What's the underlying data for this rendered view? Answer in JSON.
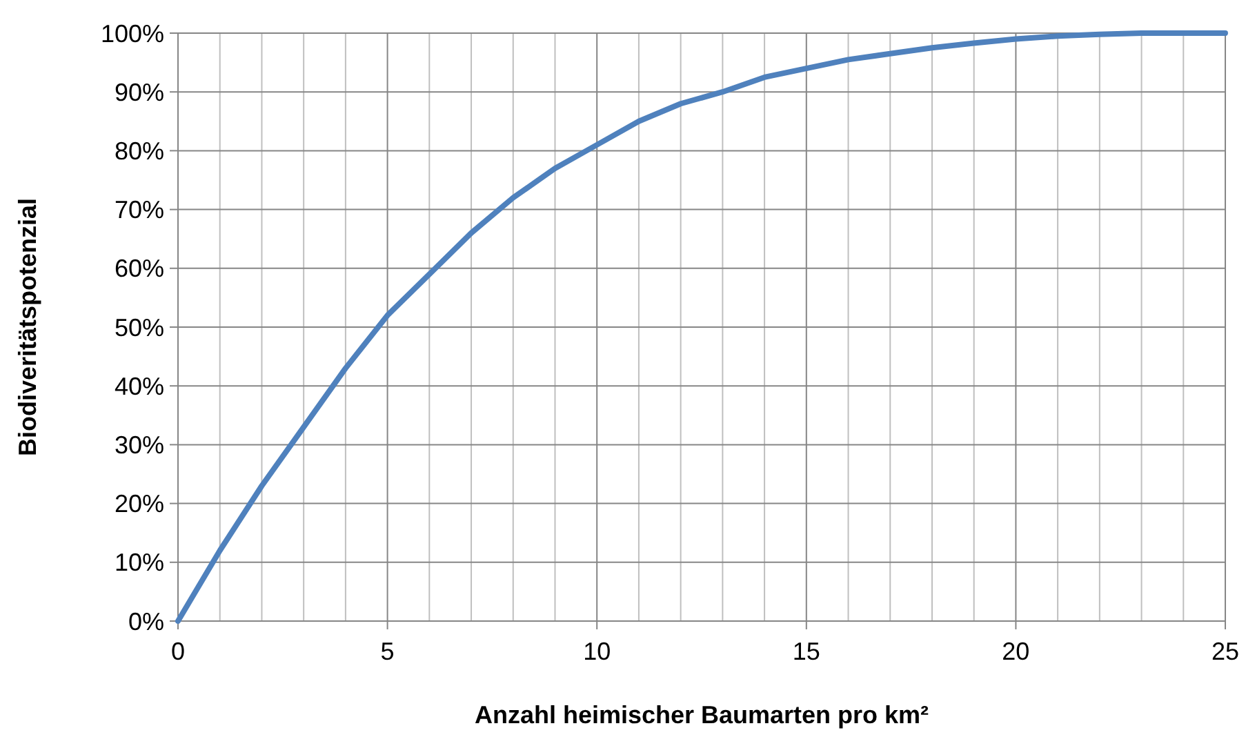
{
  "chart_data": {
    "type": "line",
    "xlabel": "Anzahl heimischer Baumarten pro km²",
    "ylabel": "Biodiveritätspotenzial",
    "x": [
      0,
      1,
      2,
      3,
      4,
      5,
      6,
      7,
      8,
      9,
      10,
      11,
      12,
      13,
      14,
      15,
      16,
      17,
      18,
      19,
      20,
      21,
      22,
      23,
      24,
      25
    ],
    "series": [
      {
        "color": "#4f81bd",
        "values": [
          0,
          12,
          23,
          33,
          43,
          52,
          59,
          66,
          72,
          77,
          81,
          85,
          88,
          90,
          92.5,
          94,
          95.5,
          96.5,
          97.5,
          98.3,
          99,
          99.5,
          99.8,
          100,
          100,
          100
        ]
      }
    ],
    "xlim": [
      0,
      25
    ],
    "xticks": [
      0,
      {
        "value": 1,
        "label": null
      },
      {
        "value": 2,
        "label": null
      },
      {
        "value": 3,
        "label": null
      },
      {
        "value": 4,
        "label": null
      },
      5,
      {
        "value": 6,
        "label": null
      },
      {
        "value": 7,
        "label": null
      },
      {
        "value": 8,
        "label": null
      },
      {
        "value": 9,
        "label": null
      },
      10,
      {
        "value": 11,
        "label": null
      },
      {
        "value": 12,
        "label": null
      },
      {
        "value": 13,
        "label": null
      },
      {
        "value": 14,
        "label": null
      },
      15,
      {
        "value": 16,
        "label": null
      },
      {
        "value": 17,
        "label": null
      },
      {
        "value": 18,
        "label": null
      },
      {
        "value": 19,
        "label": null
      },
      20,
      {
        "value": 21,
        "label": null
      },
      {
        "value": 22,
        "label": null
      },
      {
        "value": 23,
        "label": null
      },
      {
        "value": 24,
        "label": null
      },
      25
    ],
    "ylim": [
      0,
      100
    ],
    "yticks": [
      {
        "value": 0,
        "label": "0%"
      },
      {
        "value": 10,
        "label": "10%"
      },
      {
        "value": 20,
        "label": "20%"
      },
      {
        "value": 30,
        "label": "30%"
      },
      {
        "value": 40,
        "label": "40%"
      },
      {
        "value": 50,
        "label": "50%"
      },
      {
        "value": 60,
        "label": "60%"
      },
      {
        "value": 70,
        "label": "70%"
      },
      {
        "value": 80,
        "label": "80%"
      },
      {
        "value": 90,
        "label": "90%"
      },
      {
        "value": 100,
        "label": "100%"
      }
    ],
    "grid": true,
    "marker": "none",
    "line_style": "solid"
  }
}
